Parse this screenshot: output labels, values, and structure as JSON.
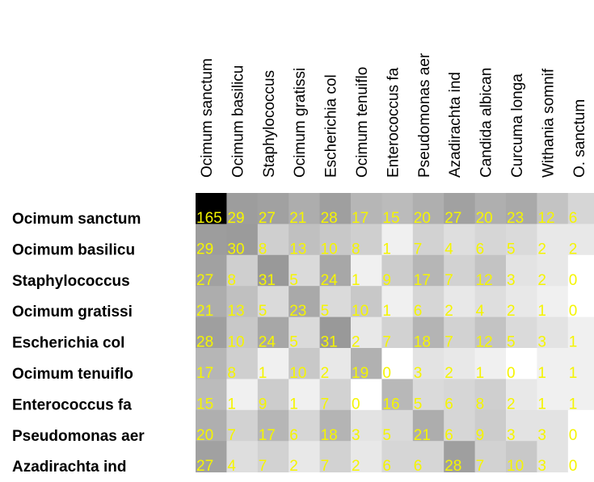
{
  "chart_data": {
    "type": "heatmap",
    "columns": [
      "Ocimum sanctum",
      "Ocimum basilicu",
      "Staphylococcus",
      "Ocimum gratissi",
      "Escherichia col",
      "Ocimum tenuiflo",
      "Enterococcus fa",
      "Pseudomonas aer",
      "Azadirachta ind",
      "Candida albican",
      "Curcuma longa",
      "Withania somnif",
      "O. sanctum"
    ],
    "rows": [
      "Ocimum sanctum",
      "Ocimum basilicu",
      "Staphylococcus",
      "Ocimum gratissi",
      "Escherichia col",
      "Ocimum tenuiflo",
      "Enterococcus fa",
      "Pseudomonas aer",
      "Azadirachta ind"
    ],
    "values": [
      [
        165,
        29,
        27,
        21,
        28,
        17,
        15,
        20,
        27,
        20,
        23,
        12,
        6
      ],
      [
        29,
        30,
        8,
        13,
        10,
        8,
        1,
        7,
        4,
        6,
        5,
        2,
        2
      ],
      [
        27,
        8,
        31,
        5,
        24,
        1,
        9,
        17,
        7,
        12,
        3,
        2,
        0
      ],
      [
        21,
        13,
        5,
        23,
        5,
        10,
        1,
        6,
        2,
        4,
        2,
        1,
        0
      ],
      [
        28,
        10,
        24,
        5,
        31,
        2,
        7,
        18,
        7,
        12,
        5,
        3,
        1
      ],
      [
        17,
        8,
        1,
        10,
        2,
        19,
        0,
        3,
        2,
        1,
        0,
        1,
        1
      ],
      [
        15,
        1,
        9,
        1,
        7,
        0,
        16,
        5,
        6,
        8,
        2,
        1,
        1
      ],
      [
        20,
        7,
        17,
        6,
        18,
        3,
        5,
        21,
        6,
        9,
        3,
        3,
        0
      ],
      [
        27,
        4,
        7,
        2,
        7,
        2,
        6,
        6,
        28,
        7,
        10,
        3,
        0
      ]
    ],
    "colors": {
      "cell_low": "#ffffff",
      "cell_high": "#000000",
      "value_text": "#f5f500",
      "label_text": "#000000"
    }
  }
}
